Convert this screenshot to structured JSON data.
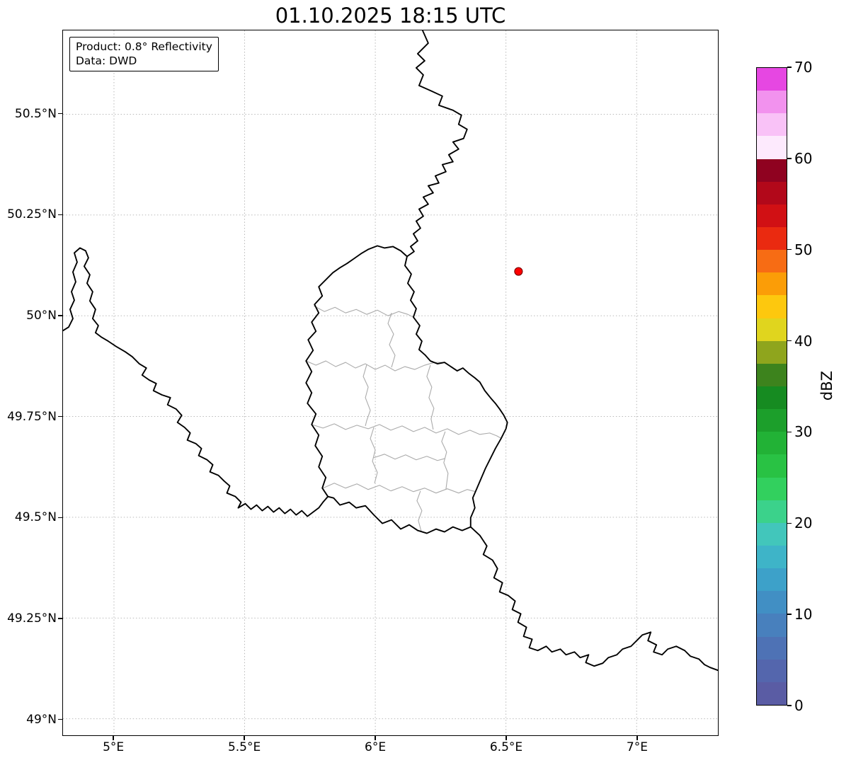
{
  "title": "01.10.2025 18:15 UTC",
  "annotation": {
    "line1": "Product: 0.8° Reflectivity",
    "line2": "Data: DWD"
  },
  "colorbar": {
    "label": "dBZ",
    "min": 0,
    "max": 70,
    "band_size_dbz": 2.5,
    "ticks": [
      0,
      10,
      20,
      30,
      40,
      50,
      60,
      70
    ],
    "colors_bottom_to_top": [
      "#5a5ca4",
      "#5466ad",
      "#4e72b5",
      "#4880bd",
      "#418fc4",
      "#3da1c9",
      "#3eb4c8",
      "#42c6bb",
      "#3bd28b",
      "#32d05e",
      "#29c244",
      "#22b236",
      "#1c9f2b",
      "#168b21",
      "#3d831d",
      "#8fa51d",
      "#e0d51e",
      "#fdc80e",
      "#fb9d07",
      "#f76c14",
      "#ea2a10",
      "#d11014",
      "#b2081a",
      "#8f0220",
      "#fdeafd",
      "#f9c2f7",
      "#f292ee",
      "#e647e2"
    ]
  },
  "map": {
    "extent": {
      "lon_min": 4.805,
      "lon_max": 7.311,
      "lat_min": 48.959,
      "lat_max": 50.708
    },
    "x_ticks": [
      {
        "lon": 5.0,
        "label": "5°E"
      },
      {
        "lon": 5.5,
        "label": "5.5°E"
      },
      {
        "lon": 6.0,
        "label": "6°E"
      },
      {
        "lon": 6.5,
        "label": "6.5°E"
      },
      {
        "lon": 7.0,
        "label": "7°E"
      }
    ],
    "y_ticks": [
      {
        "lat": 50.5,
        "label": "50.5°N"
      },
      {
        "lat": 50.25,
        "label": "50.25°N"
      },
      {
        "lat": 50.0,
        "label": "50°N"
      },
      {
        "lat": 49.75,
        "label": "49.75°N"
      },
      {
        "lat": 49.5,
        "label": "49.5°N"
      },
      {
        "lat": 49.25,
        "label": "49.25°N"
      },
      {
        "lat": 49.0,
        "label": "49°N"
      }
    ],
    "radar_marker": {
      "lon": 6.548,
      "lat": 50.11,
      "fill": "#ff0000",
      "edge": "#7f0000"
    },
    "borders": {
      "national_color": "#000000",
      "canton_color": "#ababab",
      "national": [
        "M509 0L517 18 502 33 512 43 500 53 510 63 504 78 522 86 537 93 532 106 552 113 564 120 560 133 572 140 567 153 552 158 560 168 546 176 552 186 537 190 542 200 527 206 532 216 517 220 524 230 510 236 517 246 504 253 510 263 500 270 506 280 496 288 502 298 492 306 497 313 487 320",
        "M445 305L455 308 467 306 478 312 487 320 484 333 493 345 488 358 497 370 492 382 500 394 496 406 505 418 500 430 508 440 504 452 513 460 520 468 530 472 540 470 549 476 558 482 566 478 575 486 583 492 590 498 597 510 605 520 612 528 618 536 624 545 629 555 627 564 620 578 612 592 605 606 598 620 592 634 586 648 580 662 583 676 577 690 577 703 565 708 552 703 540 710 528 706 515 712 502 708 490 700 478 706 465 693 452 698 440 686 428 673 415 676 405 668 392 672 383 662 375 660 367 648 372 633 362 618 367 603 357 588 362 573 352 558 358 543 346 528 352 513 344 499 352 483 344 468 354 453 347 438 358 426 352 413 362 400 356 388 367 376 362 363 372 353 382 343 392 336 402 330 412 323 422 316 432 310Z",
        "M0 425L8 420 14 408 10 395 16 382 12 370 18 356 14 342 20 328 16 315 24 308 32 312 36 322 30 334 38 346 34 358 42 370 38 383 46 395 42 408 50 418 46 428 54 434 64 440 76 448 88 455 98 462 108 472 118 478 112 488 122 495 132 500 128 510 140 516 152 520 148 530 160 536 168 545 162 555 172 562 180 570 176 580 188 585 196 592 192 602 204 608 212 615 208 625 220 630 228 638 236 645 232 655 244 660 252 668 248 676 258 670 266 678 274 672 282 680 290 674 298 682 306 676 314 684 322 678 330 686 338 680 346 688 354 682 362 676 368 668 375 660",
        "M577 703L590 715 600 730 595 742 608 750 615 762 610 775 622 782 618 795 630 800 640 808 636 820 648 826 644 838 656 845 652 858 664 862 660 874 672 878 684 872 692 880 704 876 712 884 724 880 732 888 744 884 740 895 752 900 764 896 772 888 784 884 792 876 804 872 812 864 820 856 832 852 828 864 840 870 836 880 848 884 856 876 868 872 880 878 888 886 900 890 908 898 916 902 927 906"
      ],
      "cantons": [
        "M355 390L370 398 385 392 400 400 415 395 430 402 445 396 460 404 475 398 488 402 496 406",
        "M344 468L358 474 372 468 386 476 400 470 414 478 428 472 442 480 456 474 470 482 484 476 498 480 512 474 526 470 540 470",
        "M465 400L460 415 468 430 462 445 470 460 465 477",
        "M430 473L425 490 432 505 428 520 435 538 430 552 428 560",
        "M352 558L368 563 384 557 400 565 416 559 432 564 448 558 464 566 480 560 496 568 512 562 528 570 544 564 560 572 576 566 590 572 604 570 614 574 621 578",
        "M520 474L515 490 522 505 518 520 525 535 521 550 524 565",
        "M440 562L435 578 442 594 438 610 445 626 441 641",
        "M368 648L384 641 400 648 416 642 432 650 448 644 464 652 480 646 496 653 512 648 528 655 544 649 560 655 572 650 584 653",
        "M506 652L501 666 508 680 503 694 507 709",
        "M541 568L536 582 543 597 539 612 545 627 542 650",
        "M440 605L455 600 470 607 485 601 500 608 515 603 530 609 541 606"
      ]
    }
  }
}
